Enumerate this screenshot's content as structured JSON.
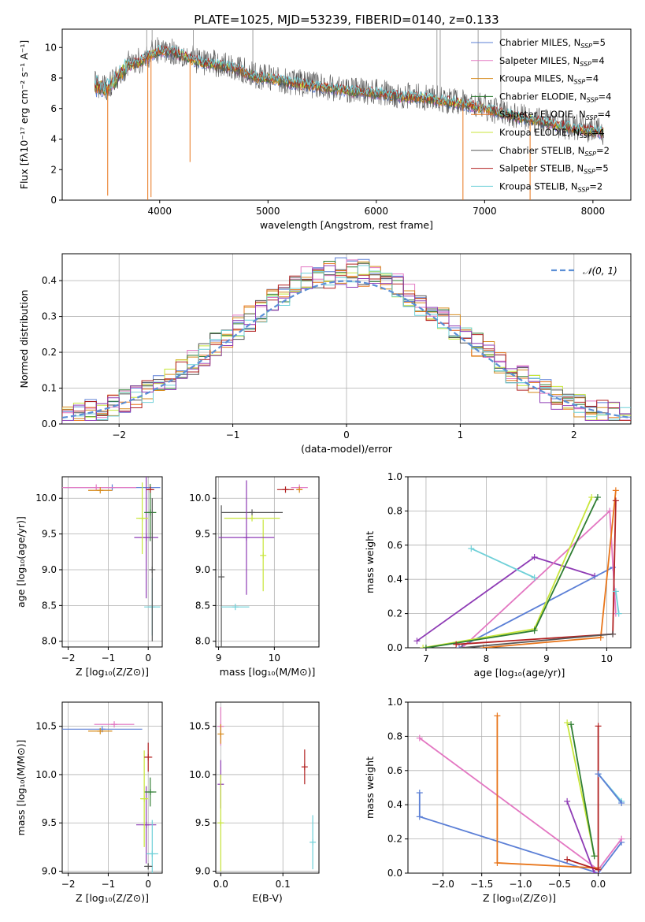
{
  "title": "PLATE=1025, MJD=53239, FIBERID=0140, z=0.133",
  "colors": {
    "Chabrier MILES": "#5b7fd6",
    "Salpeter MILES": "#e377c2",
    "Kroupa MILES": "#d68a1a",
    "Chabrier ELODIE": "#2e7d32",
    "Salpeter ELODIE": "#e8751a",
    "Kroupa ELODIE": "#c8e63a",
    "Chabrier STELIB": "#555555",
    "Salpeter STELIB": "#b22222",
    "Kroupa STELIB": "#6fd0d8",
    "gauss": "#5b8fd6",
    "purple": "#8e3bb5"
  },
  "chart_data": [
    {
      "id": "spectrum",
      "type": "line",
      "xlabel": "wavelength [Angstrom, rest frame]",
      "ylabel": "Flux [fλ10⁻¹⁷ erg cm⁻² s⁻¹ A⁻¹]",
      "xlim": [
        3100,
        8350
      ],
      "ylim": [
        0,
        11.2
      ],
      "xticks": [
        4000,
        5000,
        6000,
        7000,
        8000
      ],
      "yticks": [
        0,
        2,
        4,
        6,
        8,
        10
      ],
      "legend_position": "top-right",
      "legend": [
        {
          "label": "Chabrier MILES, N",
          "sub": "SSP",
          "val": "=5"
        },
        {
          "label": "Salpeter MILES, N",
          "sub": "SSP",
          "val": "=4"
        },
        {
          "label": "Kroupa MILES, N",
          "sub": "SSP",
          "val": "=4"
        },
        {
          "label": "Chabrier ELODIE, N",
          "sub": "SSP",
          "val": "=4"
        },
        {
          "label": "Salpeter ELODIE, N",
          "sub": "SSP",
          "val": "=4"
        },
        {
          "label": "Kroupa ELODIE, N",
          "sub": "SSP",
          "val": "=4"
        },
        {
          "label": "Chabrier STELIB, N",
          "sub": "SSP",
          "val": "=2"
        },
        {
          "label": "Salpeter STELIB, N",
          "sub": "SSP",
          "val": "=5"
        },
        {
          "label": "Kroupa STELIB, N",
          "sub": "SSP",
          "val": "=2"
        }
      ],
      "continuum": [
        [
          3400,
          7.5
        ],
        [
          3500,
          7.2
        ],
        [
          3600,
          8.0
        ],
        [
          3700,
          8.8
        ],
        [
          3800,
          9.0
        ],
        [
          3900,
          9.4
        ],
        [
          4000,
          9.8
        ],
        [
          4100,
          9.7
        ],
        [
          4200,
          9.5
        ],
        [
          4300,
          9.2
        ],
        [
          4400,
          9.0
        ],
        [
          4500,
          8.9
        ],
        [
          4700,
          8.6
        ],
        [
          4900,
          8.0
        ],
        [
          5000,
          8.0
        ],
        [
          5200,
          7.7
        ],
        [
          5400,
          7.5
        ],
        [
          5600,
          7.3
        ],
        [
          5800,
          7.1
        ],
        [
          6000,
          7.0
        ],
        [
          6200,
          6.8
        ],
        [
          6400,
          6.7
        ],
        [
          6600,
          6.5
        ],
        [
          6800,
          6.3
        ],
        [
          7000,
          6.0
        ],
        [
          7200,
          5.6
        ],
        [
          7400,
          5.3
        ],
        [
          7600,
          5.0
        ],
        [
          7800,
          4.7
        ],
        [
          8000,
          4.5
        ],
        [
          8100,
          4.4
        ]
      ],
      "spikes_down": [
        [
          3520,
          0.3
        ],
        [
          3890,
          0
        ],
        [
          3920,
          0.2
        ],
        [
          4280,
          2.5
        ],
        [
          6800,
          0
        ],
        [
          7420,
          0
        ]
      ],
      "spikes_up": [
        [
          3880,
          11.2
        ],
        [
          3930,
          11.2
        ],
        [
          4310,
          11.2
        ],
        [
          4860,
          11.2
        ],
        [
          6560,
          11.2
        ],
        [
          6590,
          11.2
        ],
        [
          6940,
          11.2
        ],
        [
          7150,
          11.2
        ]
      ]
    },
    {
      "id": "residuals",
      "type": "histogram",
      "xlabel": "(data-model)/error",
      "ylabel": "Normed distribution",
      "xlim": [
        -2.5,
        2.5
      ],
      "ylim": [
        0,
        0.475
      ],
      "xticks": [
        -2,
        -1,
        0,
        1,
        2
      ],
      "yticks": [
        0.0,
        0.1,
        0.2,
        0.3,
        0.4
      ],
      "legend": "𝒩(0, 1)",
      "gauss_label": "𝒩(0, 1)",
      "bins": 50,
      "series_count": 9
    },
    {
      "id": "age-Z",
      "type": "errorbar",
      "xlabel": "Z [log₁₀(Z/Z⊙)]",
      "ylabel": "age  [log₁₀(age/yr)]",
      "xlim": [
        -2.15,
        0.35
      ],
      "ylim": [
        7.92,
        10.3
      ],
      "xticks": [
        -2,
        -1,
        0
      ],
      "yticks": [
        8.0,
        8.5,
        9.0,
        9.5,
        10.0
      ],
      "points": [
        {
          "c": "Chabrier MILES",
          "x": -0.9,
          "xe": 1.2,
          "y": 10.15,
          "ye": 0
        },
        {
          "c": "Salpeter MILES",
          "x": -1.3,
          "xe": 1.0,
          "y": 10.15,
          "ye": 0
        },
        {
          "c": "Kroupa MILES",
          "x": -1.2,
          "xe": 0.3,
          "y": 10.11,
          "ye": 0
        },
        {
          "c": "purple",
          "x": -0.05,
          "xe": 0.3,
          "y": 9.45,
          "ye": 0.85
        },
        {
          "c": "Chabrier ELODIE",
          "x": 0.05,
          "xe": 0.15,
          "y": 9.8,
          "ye": 0.4
        },
        {
          "c": "Kroupa ELODIE",
          "x": -0.15,
          "xe": 0.15,
          "y": 9.72,
          "ye": 0.5
        },
        {
          "c": "Salpeter STELIB",
          "x": 0.05,
          "xe": 0.1,
          "y": 10.12,
          "ye": 0
        },
        {
          "c": "Kroupa STELIB",
          "x": 0.1,
          "xe": 0.2,
          "y": 8.48,
          "ye": 0.4
        },
        {
          "c": "Chabrier STELIB",
          "x": 0.1,
          "xe": 0,
          "y": 9.0,
          "ye": 1.0
        }
      ]
    },
    {
      "id": "age-mass",
      "type": "errorbar",
      "xlabel": "mass [log₁₀(M/M⊙)]",
      "ylabel": "",
      "xlim": [
        8.95,
        10.8
      ],
      "ylim": [
        7.92,
        10.3
      ],
      "xticks": [
        9,
        10
      ],
      "yticks": [
        8.0,
        8.5,
        9.0,
        9.5,
        10.0
      ],
      "points": [
        {
          "c": "Chabrier STELIB",
          "x": 9.6,
          "xe": 0.55,
          "y": 9.8,
          "ye": 0
        },
        {
          "c": "Chabrier STELIB",
          "x": 9.05,
          "xe": 0,
          "y": 8.9,
          "ye": 1.0
        },
        {
          "c": "Kroupa ELODIE",
          "x": 9.6,
          "xe": 0.5,
          "y": 9.72,
          "ye": 0
        },
        {
          "c": "Kroupa ELODIE",
          "x": 9.8,
          "xe": 0,
          "y": 9.2,
          "ye": 0.5
        },
        {
          "c": "purple",
          "x": 9.5,
          "xe": 0.5,
          "y": 9.45,
          "ye": 0.8
        },
        {
          "c": "Kroupa STELIB",
          "x": 9.3,
          "xe": 0.25,
          "y": 8.48,
          "ye": 0
        },
        {
          "c": "Salpeter STELIB",
          "x": 10.2,
          "xe": 0.15,
          "y": 10.12,
          "ye": 0
        },
        {
          "c": "Salpeter MILES",
          "x": 10.45,
          "xe": 0.15,
          "y": 10.15,
          "ye": 0
        },
        {
          "c": "Kroupa MILES",
          "x": 10.45,
          "xe": 0.05,
          "y": 10.12,
          "ye": 0
        }
      ]
    },
    {
      "id": "mw-age",
      "type": "line",
      "xlabel": "age  [log₁₀(age/yr)]",
      "ylabel": "mass weight",
      "xlim": [
        6.7,
        10.4
      ],
      "ylim": [
        0,
        1.0
      ],
      "xticks": [
        7,
        8,
        9,
        10
      ],
      "yticks": [
        0.0,
        0.2,
        0.4,
        0.6,
        0.8,
        1.0
      ],
      "series": [
        {
          "c": "purple",
          "pts": [
            [
              6.85,
              0.04
            ],
            [
              8.8,
              0.53
            ],
            [
              9.8,
              0.42
            ]
          ]
        },
        {
          "c": "Chabrier MILES",
          "pts": [
            [
              7.55,
              0.0
            ],
            [
              10.1,
              0.47
            ]
          ]
        },
        {
          "c": "Salpeter MILES",
          "pts": [
            [
              7.6,
              0.0
            ],
            [
              10.05,
              0.8
            ],
            [
              10.15,
              0.2
            ]
          ]
        },
        {
          "c": "Kroupa STELIB",
          "pts": [
            [
              7.75,
              0.58
            ],
            [
              8.8,
              0.41
            ]
          ]
        },
        {
          "c": "Kroupa ELODIE",
          "pts": [
            [
              6.95,
              0.0
            ],
            [
              8.8,
              0.11
            ],
            [
              9.75,
              0.88
            ]
          ]
        },
        {
          "c": "Chabrier ELODIE",
          "pts": [
            [
              7.0,
              0.0
            ],
            [
              8.8,
              0.1
            ],
            [
              9.85,
              0.88
            ]
          ]
        },
        {
          "c": "Salpeter ELODIE",
          "pts": [
            [
              7.95,
              0.0
            ],
            [
              9.9,
              0.06
            ],
            [
              10.15,
              0.92
            ]
          ]
        },
        {
          "c": "Salpeter STELIB",
          "pts": [
            [
              7.5,
              0.02
            ],
            [
              10.1,
              0.08
            ],
            [
              10.15,
              0.86
            ]
          ]
        },
        {
          "c": "Chabrier STELIB",
          "pts": [
            [
              7.6,
              0.0
            ],
            [
              10.1,
              0.08
            ]
          ]
        },
        {
          "c": "Kroupa STELIB",
          "pts": [
            [
              10.15,
              0.33
            ],
            [
              10.2,
              0.2
            ]
          ]
        }
      ]
    },
    {
      "id": "mass-Z",
      "type": "errorbar",
      "xlabel": "Z [log₁₀(Z/Z⊙)]",
      "ylabel": "mass [log₁₀(M/M⊙)]",
      "xlim": [
        -2.15,
        0.35
      ],
      "ylim": [
        8.98,
        10.75
      ],
      "xticks": [
        -2,
        -1,
        0
      ],
      "yticks": [
        9.0,
        9.5,
        10.0,
        10.5
      ],
      "points": [
        {
          "c": "Chabrier MILES",
          "x": -1.15,
          "xe": 1.0,
          "y": 10.47,
          "ye": 0
        },
        {
          "c": "Salpeter MILES",
          "x": -0.85,
          "xe": 0.5,
          "y": 10.52,
          "ye": 0
        },
        {
          "c": "Kroupa MILES",
          "x": -1.2,
          "xe": 0.3,
          "y": 10.45,
          "ye": 0
        },
        {
          "c": "purple",
          "x": -0.05,
          "xe": 0.25,
          "y": 9.48,
          "ye": 0.4
        },
        {
          "c": "Chabrier ELODIE",
          "x": 0.05,
          "xe": 0.15,
          "y": 9.82,
          "ye": 0.15
        },
        {
          "c": "Kroupa ELODIE",
          "x": -0.1,
          "xe": 0.1,
          "y": 9.75,
          "ye": 0.5
        },
        {
          "c": "Salpeter STELIB",
          "x": 0.0,
          "xe": 0.1,
          "y": 10.18,
          "ye": 0.15
        },
        {
          "c": "Kroupa STELIB",
          "x": 0.1,
          "xe": 0.15,
          "y": 9.18,
          "ye": 0.35
        },
        {
          "c": "Chabrier STELIB",
          "x": 0.0,
          "xe": 0.1,
          "y": 9.05,
          "ye": 0
        }
      ]
    },
    {
      "id": "mass-EBV",
      "type": "errorbar",
      "xlabel": "E(B-V)",
      "ylabel": "",
      "xlim": [
        -0.008,
        0.158
      ],
      "ylim": [
        8.98,
        10.75
      ],
      "xticks": [
        0.0,
        0.1
      ],
      "yticks": [
        9.0,
        9.5,
        10.0,
        10.5
      ],
      "points": [
        {
          "c": "Salpeter MILES",
          "x": 0.0,
          "xe": 0,
          "y": 10.5,
          "ye": 0.2
        },
        {
          "c": "Kroupa MILES",
          "x": 0.0,
          "xe": 0,
          "y": 10.42,
          "ye": 0.1
        },
        {
          "c": "purple",
          "x": 0.0,
          "xe": 0,
          "y": 9.9,
          "ye": 0.25
        },
        {
          "c": "Kroupa ELODIE",
          "x": 0.0,
          "xe": 0,
          "y": 9.5,
          "ye": 0.5
        },
        {
          "c": "Salpeter STELIB",
          "x": 0.135,
          "xe": 0,
          "y": 10.08,
          "ye": 0.18
        },
        {
          "c": "Kroupa STELIB",
          "x": 0.148,
          "xe": 0,
          "y": 9.3,
          "ye": 0.28
        }
      ]
    },
    {
      "id": "mw-Z",
      "type": "line",
      "xlabel": "Z [log₁₀(Z/Z⊙)]",
      "ylabel": "mass weight",
      "xlim": [
        -2.45,
        0.42
      ],
      "ylim": [
        0,
        1.0
      ],
      "xticks": [
        -2.0,
        -1.5,
        -1.0,
        -0.5,
        0.0
      ],
      "yticks": [
        0.0,
        0.2,
        0.4,
        0.6,
        0.8,
        1.0
      ],
      "series": [
        {
          "c": "Chabrier MILES",
          "pts": [
            [
              -2.3,
              0.47
            ],
            [
              -2.3,
              0.33
            ],
            [
              0.0,
              0.0
            ],
            [
              0.3,
              0.18
            ]
          ]
        },
        {
          "c": "Salpeter MILES",
          "pts": [
            [
              -2.3,
              0.79
            ],
            [
              0.0,
              0.02
            ],
            [
              0.3,
              0.2
            ]
          ]
        },
        {
          "c": "Salpeter ELODIE",
          "pts": [
            [
              -1.3,
              0.92
            ],
            [
              -1.3,
              0.06
            ],
            [
              0.0,
              0.03
            ]
          ]
        },
        {
          "c": "purple",
          "pts": [
            [
              -0.4,
              0.42
            ],
            [
              -0.05,
              0.0
            ]
          ]
        },
        {
          "c": "Kroupa ELODIE",
          "pts": [
            [
              -0.4,
              0.88
            ],
            [
              -0.05,
              0.1
            ]
          ]
        },
        {
          "c": "Chabrier ELODIE",
          "pts": [
            [
              -0.35,
              0.87
            ],
            [
              -0.05,
              0.1
            ]
          ]
        },
        {
          "c": "Salpeter STELIB",
          "pts": [
            [
              -0.4,
              0.08
            ],
            [
              0.0,
              0.02
            ],
            [
              0.0,
              0.86
            ]
          ]
        },
        {
          "c": "Kroupa STELIB",
          "pts": [
            [
              0.0,
              0.58
            ],
            [
              0.3,
              0.42
            ]
          ]
        },
        {
          "c": "Chabrier MILES",
          "pts": [
            [
              0.0,
              0.58
            ],
            [
              0.3,
              0.41
            ]
          ]
        }
      ]
    }
  ]
}
